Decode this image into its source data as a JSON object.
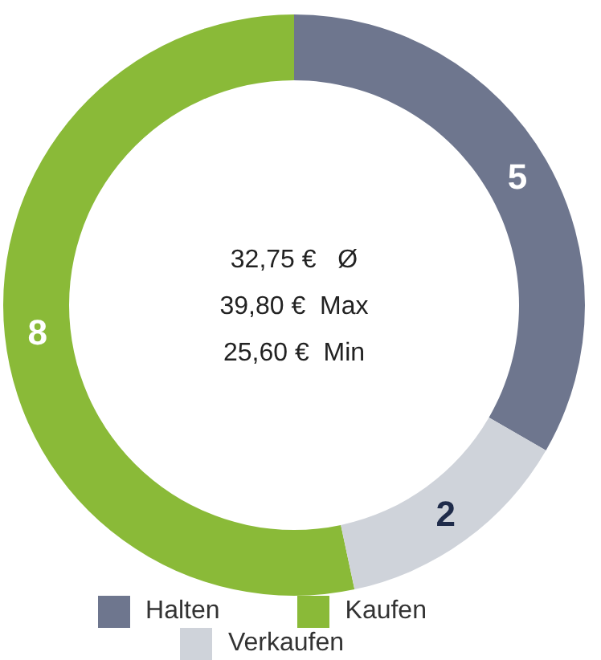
{
  "chart_data": {
    "type": "donut",
    "categories": [
      "Kaufen",
      "Halten",
      "Verkaufen"
    ],
    "values": [
      8,
      5,
      2
    ],
    "colors": [
      "#8aba38",
      "#6e768e",
      "#cfd3da"
    ],
    "data_labels": true,
    "legend": "bottom",
    "annotations": [
      "32,75 €   Ø",
      "39,80 €  Max",
      "25,60 €  Min"
    ]
  }
}
